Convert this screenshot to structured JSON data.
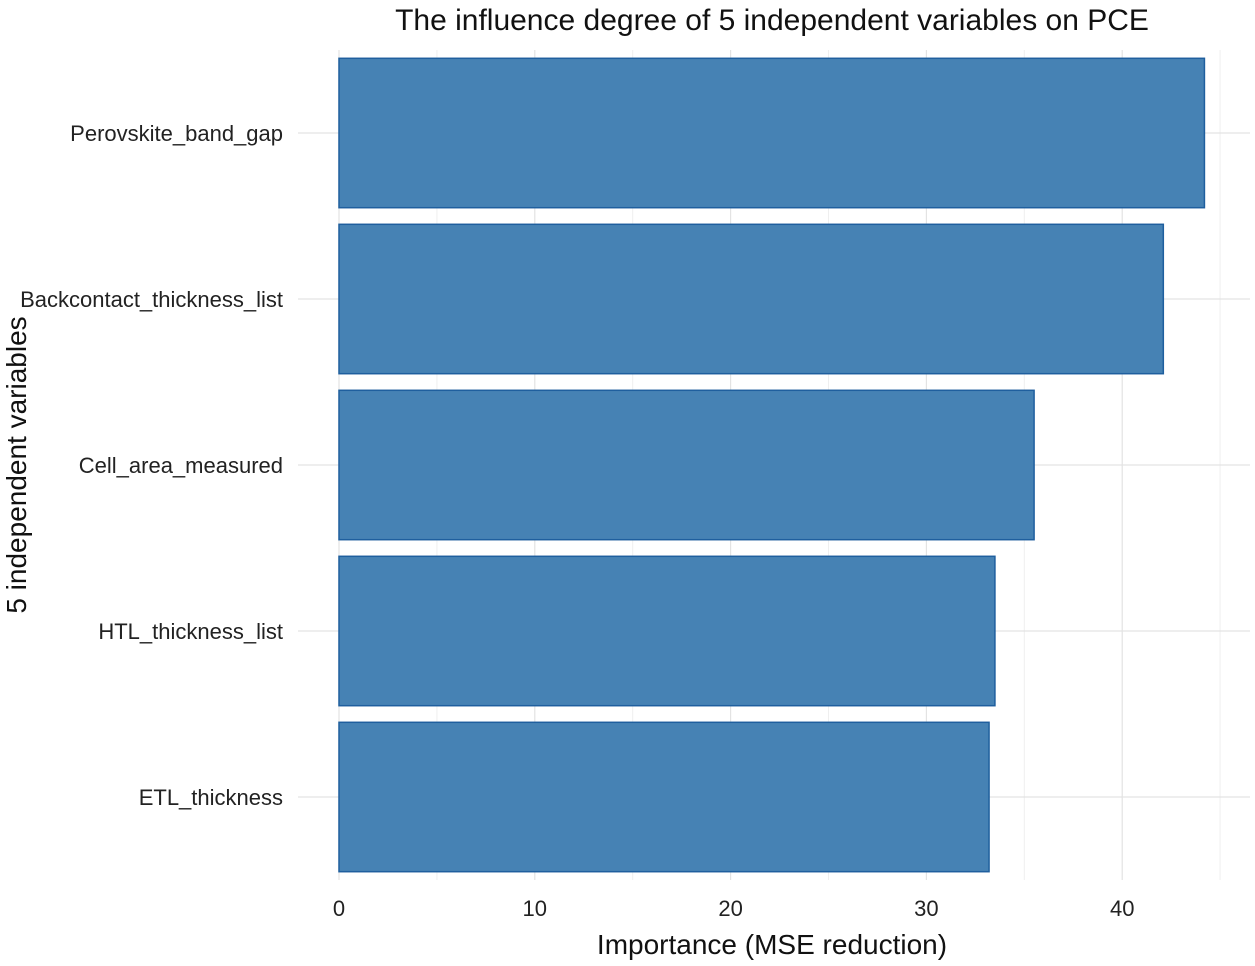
{
  "chart_data": {
    "type": "bar",
    "orientation": "horizontal",
    "title": "The influence degree of 5 independent variables on PCE",
    "xlabel": "Importance (MSE reduction)",
    "ylabel": "5 independent variables",
    "categories": [
      "Perovskite_band_gap",
      "Backcontact_thickness_list",
      "Cell_area_measured",
      "HTL_thickness_list",
      "ETL_thickness"
    ],
    "values": [
      44.2,
      42.1,
      35.5,
      33.5,
      33.2
    ],
    "xlim": [
      0,
      45
    ],
    "xticks": [
      "0",
      "10",
      "20",
      "30",
      "40"
    ],
    "grid": true,
    "legend": "none",
    "bar_color": "#4682B4",
    "bar_edge_color": "#1F5F9E"
  }
}
